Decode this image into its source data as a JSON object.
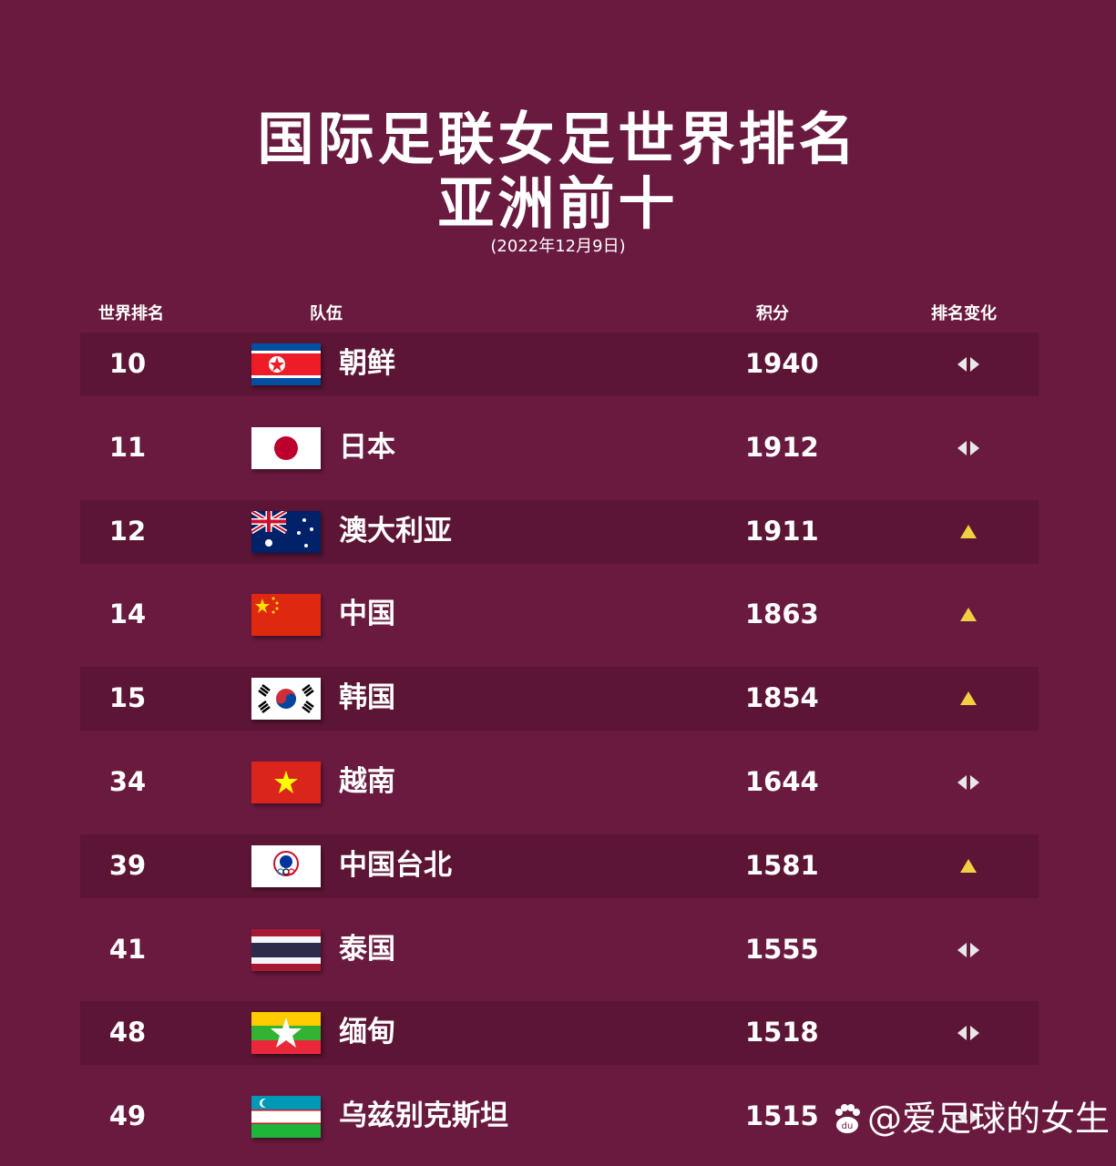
{
  "title_line1": "国际足联女足世界排名",
  "title_line2": "亚洲前十",
  "date": "(2022年12月9日)",
  "headers": {
    "rank": "世界排名",
    "team": "队伍",
    "points": "积分",
    "change": "排名变化"
  },
  "colors": {
    "background": "#6a1a3f",
    "stripe": "#5c1535",
    "up_arrow": "#f0d040",
    "same_arrow": "#e8e8e8"
  },
  "rows": [
    {
      "rank": "10",
      "team": "朝鲜",
      "points": "1940",
      "change": "same",
      "flag": "north-korea"
    },
    {
      "rank": "11",
      "team": "日本",
      "points": "1912",
      "change": "same",
      "flag": "japan"
    },
    {
      "rank": "12",
      "team": "澳大利亚",
      "points": "1911",
      "change": "up",
      "flag": "australia"
    },
    {
      "rank": "14",
      "team": "中国",
      "points": "1863",
      "change": "up",
      "flag": "china"
    },
    {
      "rank": "15",
      "team": "韩国",
      "points": "1854",
      "change": "up",
      "flag": "south-korea"
    },
    {
      "rank": "34",
      "team": "越南",
      "points": "1644",
      "change": "same",
      "flag": "vietnam"
    },
    {
      "rank": "39",
      "team": "中国台北",
      "points": "1581",
      "change": "up",
      "flag": "chinese-taipei"
    },
    {
      "rank": "41",
      "team": "泰国",
      "points": "1555",
      "change": "same",
      "flag": "thailand"
    },
    {
      "rank": "48",
      "team": "缅甸",
      "points": "1518",
      "change": "same",
      "flag": "myanmar"
    },
    {
      "rank": "49",
      "team": "乌兹别克斯坦",
      "points": "1515",
      "change": "same",
      "flag": "uzbekistan"
    }
  ],
  "watermark": "@爱足球的女生"
}
